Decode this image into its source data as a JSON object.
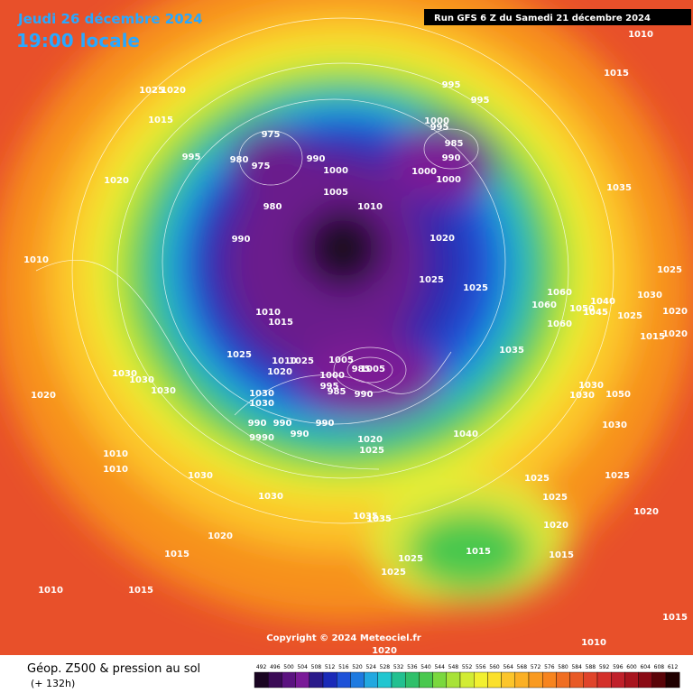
{
  "header": {
    "title": "Jeudi 26 décembre 2024",
    "time": "19:00 locale",
    "run": "Run GFS 6 Z du Samedi 21 décembre 2024"
  },
  "copyright": "Copyright © 2024 Meteociel.fr",
  "footer": {
    "title": "Géop. Z500 & pression au sol",
    "lead": "(+ 132h)"
  },
  "colorbar": {
    "ticks": [
      492,
      496,
      500,
      504,
      508,
      512,
      516,
      520,
      524,
      528,
      532,
      536,
      540,
      544,
      548,
      552,
      556,
      560,
      564,
      568,
      572,
      576,
      580,
      584,
      588,
      592,
      596,
      600,
      604,
      608,
      612
    ]
  },
  "isobar_labels": [
    "1010",
    "1015",
    "995",
    "995",
    "1025",
    "1020",
    "1015",
    "995",
    "975",
    "980",
    "975",
    "990",
    "1000",
    "1000",
    "995",
    "985",
    "990",
    "1000",
    "1000",
    "1005",
    "1010",
    "980",
    "990",
    "1020",
    "1010",
    "1020",
    "1025",
    "1025",
    "1035",
    "1060",
    "1060",
    "1060",
    "1040",
    "1050",
    "1045",
    "1025",
    "1030",
    "1020",
    "1025",
    "1015",
    "1020",
    "1010",
    "1015",
    "1025",
    "1010",
    "1025",
    "1020",
    "1005",
    "985",
    "1005",
    "1000",
    "995",
    "985",
    "990",
    "1030",
    "1030",
    "990",
    "990",
    "990",
    "990",
    "9990",
    "1030",
    "1030",
    "1030",
    "1020",
    "1035",
    "1030",
    "1050",
    "1030",
    "1030",
    "1020",
    "1025",
    "1040",
    "1010",
    "1010",
    "1030",
    "1030",
    "1025",
    "1025",
    "1035",
    "1035",
    "1020",
    "1020",
    "1020",
    "1025",
    "1015",
    "1025",
    "1015",
    "1015",
    "1025",
    "1010",
    "1015",
    "1010",
    "1015",
    "1020"
  ]
}
